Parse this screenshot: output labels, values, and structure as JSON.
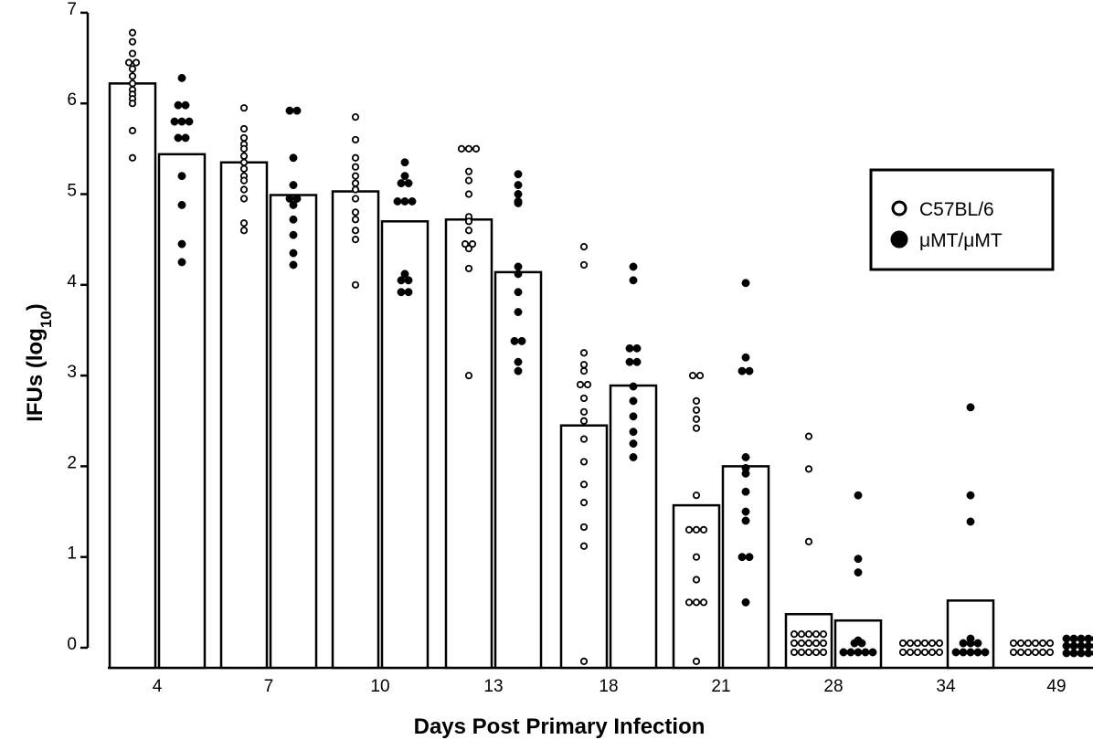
{
  "chart_data": {
    "type": "bar",
    "title": "",
    "xlabel": "Days Post Primary Infection",
    "ylabel_main": "IFUs (log",
    "ylabel_sub": "10",
    "ylabel_close": ")",
    "ylim": [
      0,
      7
    ],
    "yticks": [
      "0",
      "1",
      "2",
      "3",
      "4",
      "5",
      "6",
      "7"
    ],
    "categories": [
      "4",
      "7",
      "10",
      "13",
      "18",
      "21",
      "28",
      "34",
      "49"
    ],
    "legend_position": "right",
    "series": [
      {
        "name": "C57BL/6",
        "marker": "open-circle",
        "bar_values": [
          6.22,
          5.35,
          5.03,
          4.72,
          2.45,
          1.57,
          0.37,
          0,
          0
        ],
        "points": [
          [
            6.78,
            6.68,
            6.55,
            6.45,
            6.45,
            6.38,
            6.3,
            6.22,
            6.15,
            6.1,
            6.05,
            6.0,
            5.7,
            5.4
          ],
          [
            5.95,
            5.72,
            5.62,
            5.55,
            5.5,
            5.42,
            5.35,
            5.28,
            5.2,
            5.15,
            5.05,
            4.95,
            4.68,
            4.6
          ],
          [
            5.85,
            5.6,
            5.4,
            5.3,
            5.2,
            5.12,
            5.05,
            4.95,
            4.8,
            4.72,
            4.6,
            4.5,
            4.0
          ],
          [
            5.5,
            5.5,
            5.5,
            5.25,
            5.15,
            5.0,
            4.75,
            4.7,
            4.6,
            4.45,
            4.45,
            4.4,
            4.18,
            3.0
          ],
          [
            4.42,
            4.22,
            3.25,
            3.12,
            3.05,
            2.9,
            2.9,
            2.75,
            2.6,
            2.5,
            2.3,
            2.05,
            1.8,
            1.6,
            1.33,
            1.12,
            -0.15
          ],
          [
            3.0,
            3.0,
            2.72,
            2.62,
            2.52,
            2.42,
            1.68,
            1.3,
            1.3,
            1.3,
            1.0,
            0.75,
            0.5,
            0.5,
            0.5,
            -0.15
          ],
          [
            2.33,
            1.97,
            1.17,
            0.15,
            0.15,
            0.15,
            0.15,
            0.15,
            0.05,
            0.05,
            0.05,
            0.05,
            0.05,
            -0.05,
            -0.05,
            -0.05,
            -0.05,
            -0.05
          ],
          [
            0.05,
            0.05,
            0.05,
            0.05,
            0.05,
            0.05,
            -0.05,
            -0.05,
            -0.05,
            -0.05,
            -0.05,
            -0.05
          ],
          [
            0.05,
            0.05,
            0.05,
            0.05,
            0.05,
            0.05,
            -0.05,
            -0.05,
            -0.05,
            -0.05,
            -0.05,
            -0.05
          ]
        ]
      },
      {
        "name": "μMT/μMT",
        "marker": "filled-circle",
        "bar_values": [
          5.44,
          4.99,
          4.7,
          4.14,
          2.89,
          2.0,
          0.3,
          0.52,
          0
        ],
        "points": [
          [
            6.28,
            5.98,
            5.98,
            5.8,
            5.8,
            5.8,
            5.62,
            5.62,
            5.2,
            4.88,
            4.45,
            4.25
          ],
          [
            5.92,
            5.92,
            5.4,
            5.1,
            4.95,
            4.95,
            4.88,
            4.72,
            4.55,
            4.35,
            4.22
          ],
          [
            5.35,
            5.2,
            5.12,
            5.12,
            4.92,
            4.92,
            4.92,
            4.12,
            4.05,
            4.05,
            3.92,
            3.92
          ],
          [
            5.22,
            5.1,
            5.0,
            4.92,
            4.9,
            4.2,
            4.12,
            3.92,
            3.7,
            3.38,
            3.38,
            3.15,
            3.05
          ],
          [
            4.2,
            4.05,
            3.3,
            3.3,
            3.15,
            3.15,
            2.88,
            2.72,
            2.55,
            2.38,
            2.25,
            2.1
          ],
          [
            4.02,
            3.2,
            3.05,
            3.05,
            2.1,
            1.98,
            1.92,
            1.72,
            1.5,
            1.4,
            1.0,
            1.0,
            0.5
          ],
          [
            1.68,
            0.98,
            0.83,
            0.08,
            0.05,
            0.05,
            -0.05,
            -0.05,
            -0.05,
            -0.05,
            -0.05
          ],
          [
            2.65,
            1.68,
            1.39,
            0.1,
            0.05,
            0.05,
            0.05,
            -0.05,
            -0.05,
            -0.05,
            -0.05,
            -0.05
          ],
          [
            0.1,
            0.1,
            0.1,
            0.1,
            0.1,
            0.02,
            0.02,
            0.02,
            0.02,
            0.02,
            -0.06,
            -0.06,
            -0.06,
            -0.06,
            -0.06
          ]
        ]
      }
    ]
  }
}
